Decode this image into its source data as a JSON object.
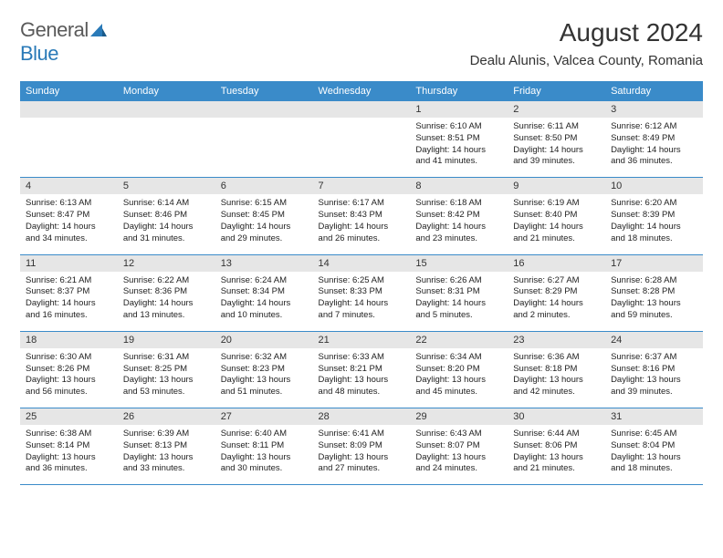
{
  "logo": {
    "text1": "General",
    "text2": "Blue"
  },
  "title": "August 2024",
  "location": "Dealu Alunis, Valcea County, Romania",
  "dayHeaders": [
    "Sunday",
    "Monday",
    "Tuesday",
    "Wednesday",
    "Thursday",
    "Friday",
    "Saturday"
  ],
  "colors": {
    "headerBg": "#3a8bc9",
    "dateBg": "#e6e6e6",
    "logoBlue": "#2a7ab8"
  },
  "weeks": [
    [
      null,
      null,
      null,
      null,
      {
        "d": "1",
        "sr": "Sunrise: 6:10 AM",
        "ss": "Sunset: 8:51 PM",
        "dl1": "Daylight: 14 hours",
        "dl2": "and 41 minutes."
      },
      {
        "d": "2",
        "sr": "Sunrise: 6:11 AM",
        "ss": "Sunset: 8:50 PM",
        "dl1": "Daylight: 14 hours",
        "dl2": "and 39 minutes."
      },
      {
        "d": "3",
        "sr": "Sunrise: 6:12 AM",
        "ss": "Sunset: 8:49 PM",
        "dl1": "Daylight: 14 hours",
        "dl2": "and 36 minutes."
      }
    ],
    [
      {
        "d": "4",
        "sr": "Sunrise: 6:13 AM",
        "ss": "Sunset: 8:47 PM",
        "dl1": "Daylight: 14 hours",
        "dl2": "and 34 minutes."
      },
      {
        "d": "5",
        "sr": "Sunrise: 6:14 AM",
        "ss": "Sunset: 8:46 PM",
        "dl1": "Daylight: 14 hours",
        "dl2": "and 31 minutes."
      },
      {
        "d": "6",
        "sr": "Sunrise: 6:15 AM",
        "ss": "Sunset: 8:45 PM",
        "dl1": "Daylight: 14 hours",
        "dl2": "and 29 minutes."
      },
      {
        "d": "7",
        "sr": "Sunrise: 6:17 AM",
        "ss": "Sunset: 8:43 PM",
        "dl1": "Daylight: 14 hours",
        "dl2": "and 26 minutes."
      },
      {
        "d": "8",
        "sr": "Sunrise: 6:18 AM",
        "ss": "Sunset: 8:42 PM",
        "dl1": "Daylight: 14 hours",
        "dl2": "and 23 minutes."
      },
      {
        "d": "9",
        "sr": "Sunrise: 6:19 AM",
        "ss": "Sunset: 8:40 PM",
        "dl1": "Daylight: 14 hours",
        "dl2": "and 21 minutes."
      },
      {
        "d": "10",
        "sr": "Sunrise: 6:20 AM",
        "ss": "Sunset: 8:39 PM",
        "dl1": "Daylight: 14 hours",
        "dl2": "and 18 minutes."
      }
    ],
    [
      {
        "d": "11",
        "sr": "Sunrise: 6:21 AM",
        "ss": "Sunset: 8:37 PM",
        "dl1": "Daylight: 14 hours",
        "dl2": "and 16 minutes."
      },
      {
        "d": "12",
        "sr": "Sunrise: 6:22 AM",
        "ss": "Sunset: 8:36 PM",
        "dl1": "Daylight: 14 hours",
        "dl2": "and 13 minutes."
      },
      {
        "d": "13",
        "sr": "Sunrise: 6:24 AM",
        "ss": "Sunset: 8:34 PM",
        "dl1": "Daylight: 14 hours",
        "dl2": "and 10 minutes."
      },
      {
        "d": "14",
        "sr": "Sunrise: 6:25 AM",
        "ss": "Sunset: 8:33 PM",
        "dl1": "Daylight: 14 hours",
        "dl2": "and 7 minutes."
      },
      {
        "d": "15",
        "sr": "Sunrise: 6:26 AM",
        "ss": "Sunset: 8:31 PM",
        "dl1": "Daylight: 14 hours",
        "dl2": "and 5 minutes."
      },
      {
        "d": "16",
        "sr": "Sunrise: 6:27 AM",
        "ss": "Sunset: 8:29 PM",
        "dl1": "Daylight: 14 hours",
        "dl2": "and 2 minutes."
      },
      {
        "d": "17",
        "sr": "Sunrise: 6:28 AM",
        "ss": "Sunset: 8:28 PM",
        "dl1": "Daylight: 13 hours",
        "dl2": "and 59 minutes."
      }
    ],
    [
      {
        "d": "18",
        "sr": "Sunrise: 6:30 AM",
        "ss": "Sunset: 8:26 PM",
        "dl1": "Daylight: 13 hours",
        "dl2": "and 56 minutes."
      },
      {
        "d": "19",
        "sr": "Sunrise: 6:31 AM",
        "ss": "Sunset: 8:25 PM",
        "dl1": "Daylight: 13 hours",
        "dl2": "and 53 minutes."
      },
      {
        "d": "20",
        "sr": "Sunrise: 6:32 AM",
        "ss": "Sunset: 8:23 PM",
        "dl1": "Daylight: 13 hours",
        "dl2": "and 51 minutes."
      },
      {
        "d": "21",
        "sr": "Sunrise: 6:33 AM",
        "ss": "Sunset: 8:21 PM",
        "dl1": "Daylight: 13 hours",
        "dl2": "and 48 minutes."
      },
      {
        "d": "22",
        "sr": "Sunrise: 6:34 AM",
        "ss": "Sunset: 8:20 PM",
        "dl1": "Daylight: 13 hours",
        "dl2": "and 45 minutes."
      },
      {
        "d": "23",
        "sr": "Sunrise: 6:36 AM",
        "ss": "Sunset: 8:18 PM",
        "dl1": "Daylight: 13 hours",
        "dl2": "and 42 minutes."
      },
      {
        "d": "24",
        "sr": "Sunrise: 6:37 AM",
        "ss": "Sunset: 8:16 PM",
        "dl1": "Daylight: 13 hours",
        "dl2": "and 39 minutes."
      }
    ],
    [
      {
        "d": "25",
        "sr": "Sunrise: 6:38 AM",
        "ss": "Sunset: 8:14 PM",
        "dl1": "Daylight: 13 hours",
        "dl2": "and 36 minutes."
      },
      {
        "d": "26",
        "sr": "Sunrise: 6:39 AM",
        "ss": "Sunset: 8:13 PM",
        "dl1": "Daylight: 13 hours",
        "dl2": "and 33 minutes."
      },
      {
        "d": "27",
        "sr": "Sunrise: 6:40 AM",
        "ss": "Sunset: 8:11 PM",
        "dl1": "Daylight: 13 hours",
        "dl2": "and 30 minutes."
      },
      {
        "d": "28",
        "sr": "Sunrise: 6:41 AM",
        "ss": "Sunset: 8:09 PM",
        "dl1": "Daylight: 13 hours",
        "dl2": "and 27 minutes."
      },
      {
        "d": "29",
        "sr": "Sunrise: 6:43 AM",
        "ss": "Sunset: 8:07 PM",
        "dl1": "Daylight: 13 hours",
        "dl2": "and 24 minutes."
      },
      {
        "d": "30",
        "sr": "Sunrise: 6:44 AM",
        "ss": "Sunset: 8:06 PM",
        "dl1": "Daylight: 13 hours",
        "dl2": "and 21 minutes."
      },
      {
        "d": "31",
        "sr": "Sunrise: 6:45 AM",
        "ss": "Sunset: 8:04 PM",
        "dl1": "Daylight: 13 hours",
        "dl2": "and 18 minutes."
      }
    ]
  ]
}
